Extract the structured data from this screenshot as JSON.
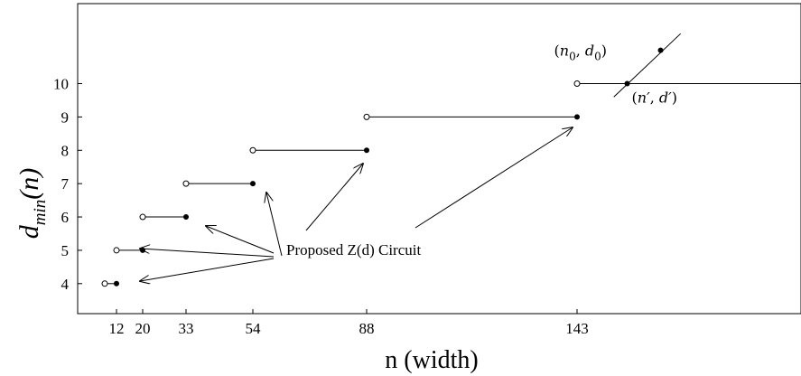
{
  "chart_data": {
    "type": "line",
    "xlabel": "n (width)",
    "ylabel_main": "d",
    "ylabel_sub": "min",
    "ylabel_arg": "(n)",
    "x_ticks": [
      12,
      20,
      33,
      54,
      88,
      143
    ],
    "y_ticks": [
      4,
      5,
      6,
      7,
      8,
      9,
      10
    ],
    "xlim": [
      0,
      210
    ],
    "ylim": [
      3.1,
      12.4
    ],
    "grid": false,
    "series": [
      {
        "steps": [
          {
            "d": 4,
            "open_n": 9,
            "closed_n": 12
          },
          {
            "d": 5,
            "open_n": 12,
            "closed_n": 20
          },
          {
            "d": 6,
            "open_n": 20,
            "closed_n": 33
          },
          {
            "d": 7,
            "open_n": 33,
            "closed_n": 54
          },
          {
            "d": 8,
            "open_n": 54,
            "closed_n": 88
          },
          {
            "d": 9,
            "open_n": 88,
            "closed_n": 143
          },
          {
            "d": 10,
            "open_n": 143,
            "closed_n": 210
          }
        ]
      }
    ],
    "extra_points": [
      {
        "label_main": "n",
        "label_sub": "0",
        "label_sep": ", ",
        "label_main2": "d",
        "label_sub2": "0",
        "n": 168,
        "d": 11
      },
      {
        "label_main": "n′",
        "label_sub": "",
        "label_sep": ", ",
        "label_main2": "d′",
        "label_sub2": "",
        "n": 158,
        "d": 10
      }
    ],
    "diagonal_line": {
      "n_start": 154,
      "d_start": 9.6,
      "n_end": 174,
      "d_end": 11.5
    },
    "annotation": {
      "text": "Proposed Z(d) Circuit",
      "arrow_targets": [
        {
          "n": 13.5,
          "d": 4
        },
        {
          "n": 21.5,
          "d": 5
        },
        {
          "n": 34.5,
          "d": 5.7
        },
        {
          "n": 51.5,
          "d": 6.8
        },
        {
          "n": 86,
          "d": 7.7
        },
        {
          "n": 140,
          "d": 8.7
        }
      ]
    }
  }
}
